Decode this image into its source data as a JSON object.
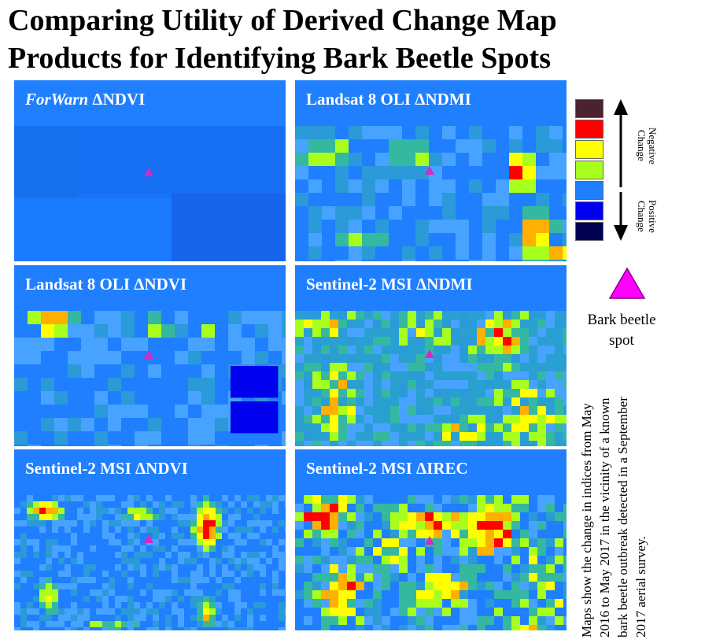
{
  "title": "Comparing Utility of Derived Change Map Products for Identifying Bark Beetle Spots",
  "panels": [
    {
      "id": "forwarn-ndvi",
      "label_prefix": "ForWarn",
      "label_suffix": " ΔNDVI"
    },
    {
      "id": "landsat-ndmi",
      "label_prefix": "",
      "label_suffix": "Landsat 8 OLI ΔNDMI"
    },
    {
      "id": "landsat-ndvi",
      "label_prefix": "",
      "label_suffix": "Landsat 8 OLI ΔNDVI"
    },
    {
      "id": "sentinel-ndmi",
      "label_prefix": "",
      "label_suffix": "Sentinel-2 MSI ΔNDMI"
    },
    {
      "id": "sentinel-ndvi",
      "label_prefix": "",
      "label_suffix": "Sentinel-2 MSI ΔNDVI"
    },
    {
      "id": "sentinel-irec",
      "label_prefix": "",
      "label_suffix": "Sentinel-2 MSI ΔIREC"
    }
  ],
  "legend": {
    "colors": [
      "#4a2230",
      "#ff0000",
      "#ffff00",
      "#a8ff1e",
      "#1f7fff",
      "#0000ee",
      "#000050"
    ],
    "negative_label": "Negative Change",
    "positive_label": "Positive Change",
    "marker_color": "#ff00ff",
    "marker_label": "Bark beetle spot"
  },
  "caption": "Maps show the change in indices from May 2016 to May 2017 in the vicinity of a known bark beetle outbreak detected in a September 2017 aerial survey."
}
